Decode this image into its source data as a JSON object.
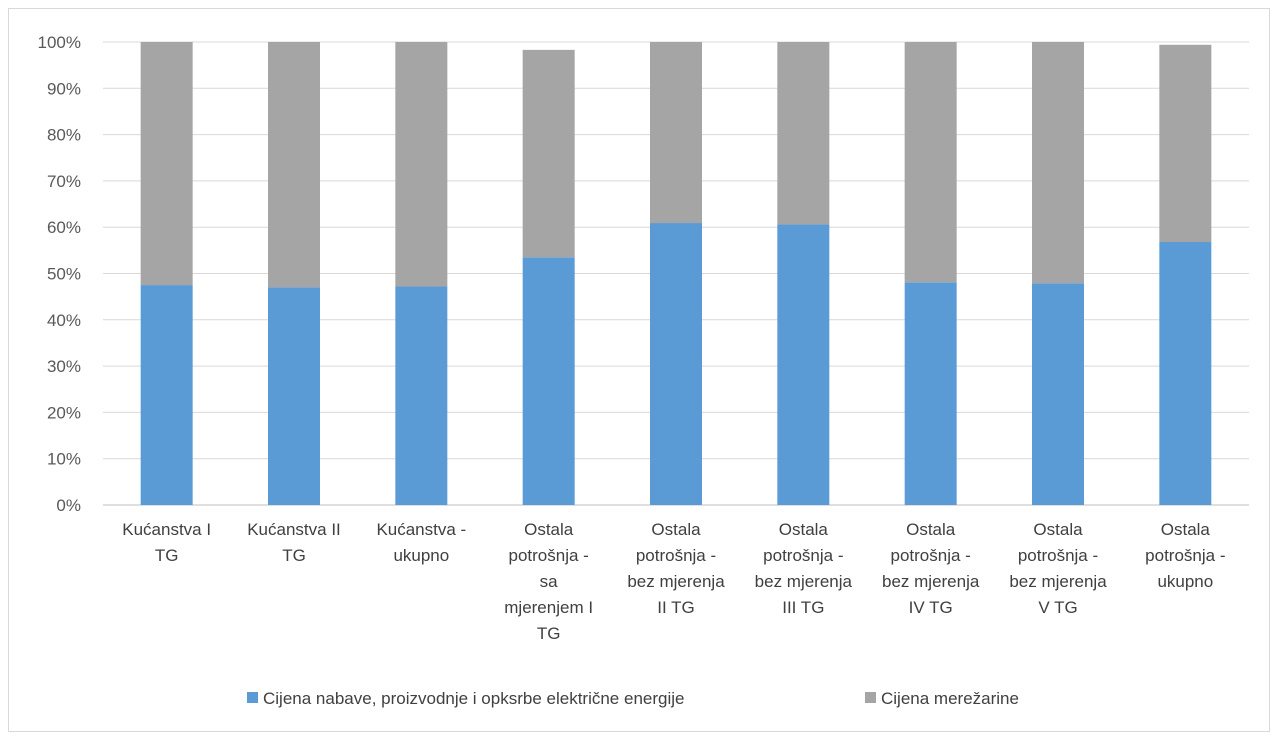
{
  "chart_data": {
    "type": "bar",
    "stacked": true,
    "title": "",
    "xlabel": "",
    "ylabel": "",
    "ylim": [
      0,
      100
    ],
    "y_tick_labels": [
      "0%",
      "10%",
      "20%",
      "30%",
      "40%",
      "50%",
      "60%",
      "70%",
      "80%",
      "90%",
      "100%"
    ],
    "grid": true,
    "legend_position": "bottom",
    "categories": [
      [
        "Kućanstva I",
        "TG"
      ],
      [
        "Kućanstva II",
        "TG"
      ],
      [
        "Kućanstva -",
        "ukupno"
      ],
      [
        "Ostala",
        "potrošnja -",
        "sa",
        "mjerenjem I",
        "TG"
      ],
      [
        "Ostala",
        "potrošnja -",
        "bez mjerenja",
        "II TG"
      ],
      [
        "Ostala",
        "potrošnja -",
        "bez mjerenja",
        "III TG"
      ],
      [
        "Ostala",
        "potrošnja -",
        "bez mjerenja",
        "IV TG"
      ],
      [
        "Ostala",
        "potrošnja -",
        "bez mjerenja",
        "V TG"
      ],
      [
        "Ostala",
        "potrošnja -",
        "ukupno"
      ]
    ],
    "series": [
      {
        "name": "Cijena nabave, proizvodnje i opksrbe električne energije",
        "color": "#5b9bd5",
        "values": [
          47.5,
          47.0,
          47.2,
          53.5,
          60.9,
          60.6,
          48.1,
          47.9,
          56.8
        ]
      },
      {
        "name": "Cijena merežarine",
        "color": "#a5a5a5",
        "values": [
          52.5,
          53.0,
          52.8,
          44.8,
          39.1,
          39.4,
          51.9,
          52.1,
          42.6
        ]
      }
    ]
  }
}
